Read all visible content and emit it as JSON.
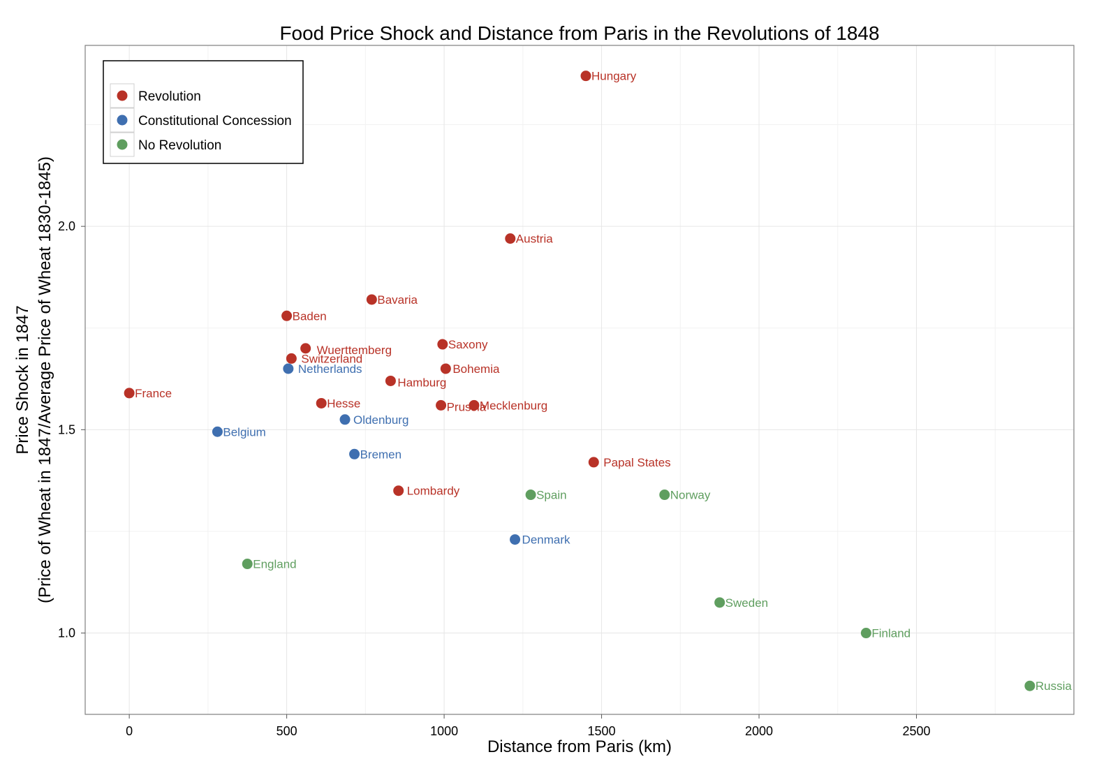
{
  "chart_data": {
    "type": "scatter",
    "title": "Food Price Shock and Distance from Paris in the Revolutions of 1848",
    "xlabel": "Distance from Paris (km)",
    "ylabel_lines": [
      "Price Shock in 1847",
      "(Price of Wheat in 1847/Average Price of Wheat 1830-1845)"
    ],
    "xlim": [
      -140,
      3000
    ],
    "ylim": [
      0.8,
      2.445
    ],
    "x_ticks": [
      0,
      500,
      1000,
      1500,
      2000,
      2500
    ],
    "y_ticks": [
      1.0,
      1.5,
      2.0
    ],
    "y_tick_labels": [
      "1.0",
      "1.5",
      "2.0"
    ],
    "grid": true,
    "legend_position": "top-left",
    "series": [
      {
        "name": "Revolution",
        "color": "#b83227",
        "points": [
          {
            "label": "Hungary",
            "x": 1450,
            "y": 2.37
          },
          {
            "label": "Austria",
            "x": 1210,
            "y": 1.97
          },
          {
            "label": "Bavaria",
            "x": 770,
            "y": 1.82
          },
          {
            "label": "Baden",
            "x": 500,
            "y": 1.78
          },
          {
            "label": "Wuerttemberg",
            "x": 560,
            "y": 1.7
          },
          {
            "label": "Switzerland",
            "x": 515,
            "y": 1.675
          },
          {
            "label": "Saxony",
            "x": 995,
            "y": 1.71
          },
          {
            "label": "Bohemia",
            "x": 1005,
            "y": 1.65
          },
          {
            "label": "Hamburg",
            "x": 830,
            "y": 1.62
          },
          {
            "label": "France",
            "x": 0,
            "y": 1.59
          },
          {
            "label": "Hesse",
            "x": 610,
            "y": 1.565
          },
          {
            "label": "Prussia",
            "x": 990,
            "y": 1.56
          },
          {
            "label": "Mecklenburg",
            "x": 1095,
            "y": 1.56
          },
          {
            "label": "Papal States",
            "x": 1475,
            "y": 1.42
          },
          {
            "label": "Lombardy",
            "x": 855,
            "y": 1.35
          }
        ]
      },
      {
        "name": "Constitutional Concession",
        "color": "#3f6fb0",
        "points": [
          {
            "label": "Netherlands",
            "x": 505,
            "y": 1.65
          },
          {
            "label": "Oldenburg",
            "x": 685,
            "y": 1.525
          },
          {
            "label": "Belgium",
            "x": 280,
            "y": 1.495
          },
          {
            "label": "Bremen",
            "x": 715,
            "y": 1.44
          },
          {
            "label": "Denmark",
            "x": 1225,
            "y": 1.23
          }
        ]
      },
      {
        "name": "No Revolution",
        "color": "#5f9e5f",
        "points": [
          {
            "label": "Spain",
            "x": 1275,
            "y": 1.34
          },
          {
            "label": "Norway",
            "x": 1700,
            "y": 1.34
          },
          {
            "label": "England",
            "x": 375,
            "y": 1.17
          },
          {
            "label": "Sweden",
            "x": 1875,
            "y": 1.075
          },
          {
            "label": "Finland",
            "x": 2340,
            "y": 1.0
          },
          {
            "label": "Russia",
            "x": 2860,
            "y": 0.87
          }
        ]
      }
    ]
  }
}
